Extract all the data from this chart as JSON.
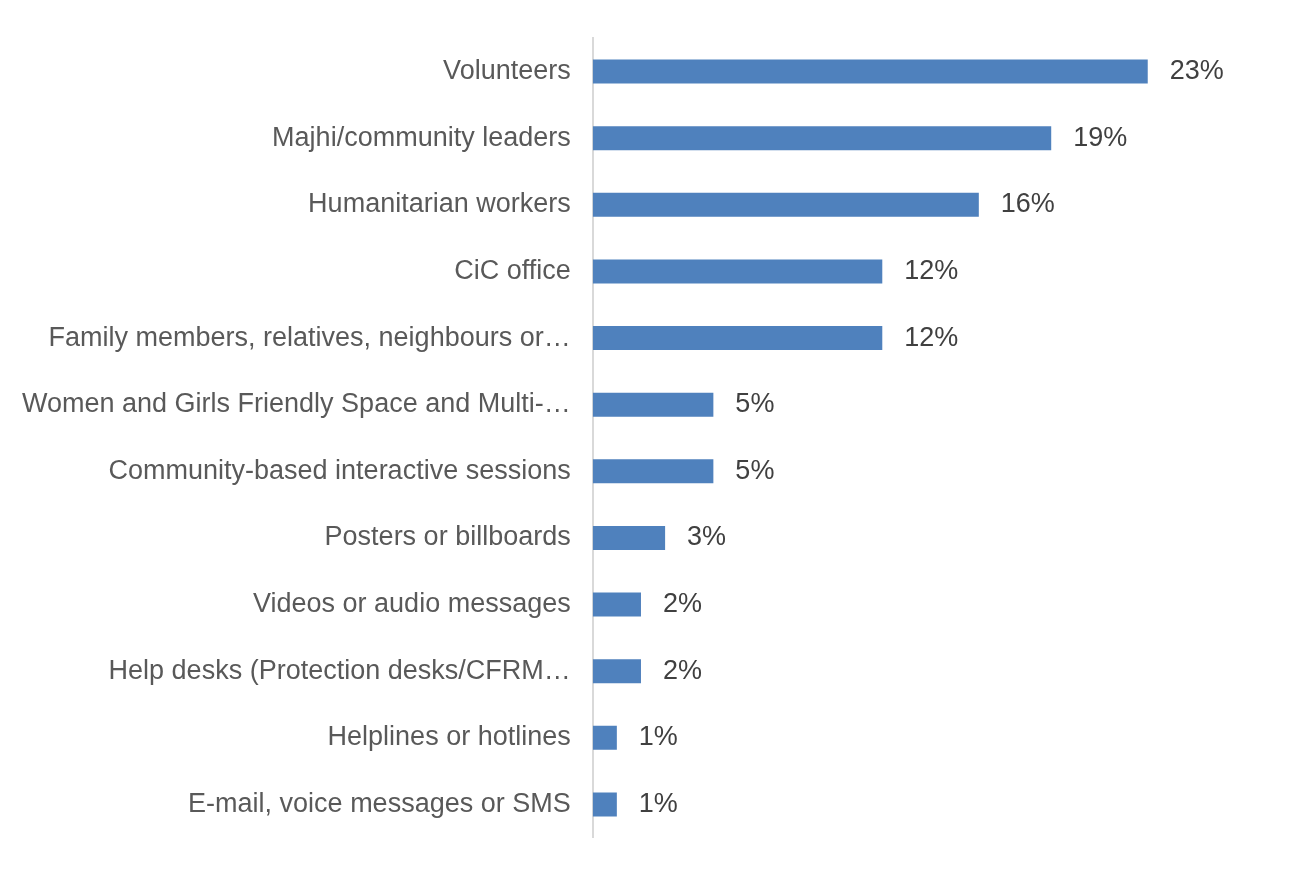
{
  "chart_data": {
    "type": "bar",
    "orientation": "horizontal",
    "categories": [
      "Volunteers",
      "Majhi/community leaders",
      "Humanitarian workers",
      "CiC office",
      "Family members, relatives, neighbours or…",
      "Women and Girls Friendly Space and Multi-…",
      "Community-based interactive sessions",
      "Posters or billboards",
      "Videos or audio messages",
      "Help desks (Protection desks/CFRM…",
      "Helplines or hotlines",
      "E-mail, voice messages or SMS"
    ],
    "values": [
      23,
      19,
      16,
      12,
      12,
      5,
      5,
      3,
      2,
      2,
      1,
      1
    ],
    "value_labels": [
      "23%",
      "19%",
      "16%",
      "12%",
      "12%",
      "5%",
      "5%",
      "3%",
      "2%",
      "2%",
      "1%",
      "1%"
    ],
    "color": "#4f81bd",
    "grid": false,
    "legend": false,
    "tick_labels": "y"
  }
}
